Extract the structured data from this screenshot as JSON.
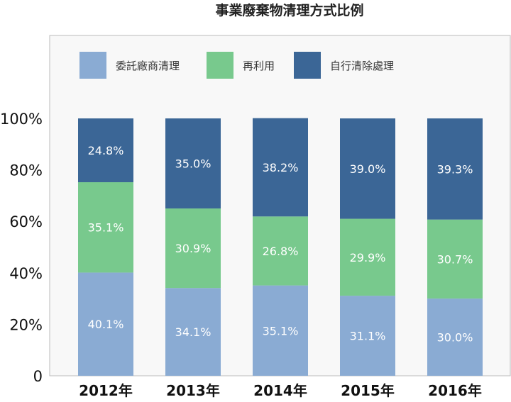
{
  "chart_data": {
    "type": "bar",
    "stacked": true,
    "title": "事業廢棄物清理方式比例",
    "categories": [
      "2012年",
      "2013年",
      "2014年",
      "2015年",
      "2016年"
    ],
    "y_ticks": [
      "0",
      "20%",
      "40%",
      "60%",
      "80%",
      "100%"
    ],
    "ylim": [
      0,
      100
    ],
    "legend_position": "top-left inside plot",
    "grid": false,
    "series": [
      {
        "name": "委託廠商清理",
        "color": "#8aabd3",
        "values": [
          40.1,
          34.1,
          35.1,
          31.1,
          30.0
        ],
        "labels": [
          "40.1%",
          "34.1%",
          "35.1%",
          "31.1%",
          "30.0%"
        ]
      },
      {
        "name": "再利用",
        "color": "#78c98d",
        "values": [
          35.1,
          30.9,
          26.8,
          29.9,
          30.7
        ],
        "labels": [
          "35.1%",
          "30.9%",
          "26.8%",
          "29.9%",
          "30.7%"
        ]
      },
      {
        "name": "自行清除處理",
        "color": "#3b6696",
        "values": [
          24.8,
          35.0,
          38.2,
          39.0,
          39.3
        ],
        "labels": [
          "24.8%",
          "35.0%",
          "38.2%",
          "39.0%",
          "39.3%"
        ]
      }
    ]
  }
}
